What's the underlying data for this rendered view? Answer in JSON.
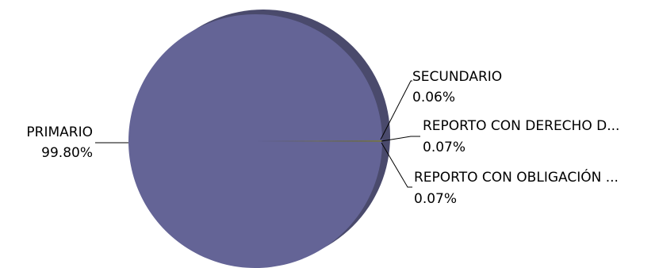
{
  "chart_data": {
    "type": "pie",
    "title": "",
    "slices": [
      {
        "label": "PRIMARIO",
        "value": 99.8,
        "value_label": "99.80%",
        "color": "#646496"
      },
      {
        "label": "SECUNDARIO",
        "value": 0.06,
        "value_label": "0.06%",
        "color": "#8c8c3c"
      },
      {
        "label": "REPORTO CON DERECHO D...",
        "value": 0.07,
        "value_label": "0.07%",
        "color": "#6e6e46"
      },
      {
        "label": "REPORTO CON OBLIGACIÓN ...",
        "value": 0.07,
        "value_label": "0.07%",
        "color": "#7a7a50"
      }
    ],
    "legend": "none",
    "style": "3d-tilted"
  }
}
